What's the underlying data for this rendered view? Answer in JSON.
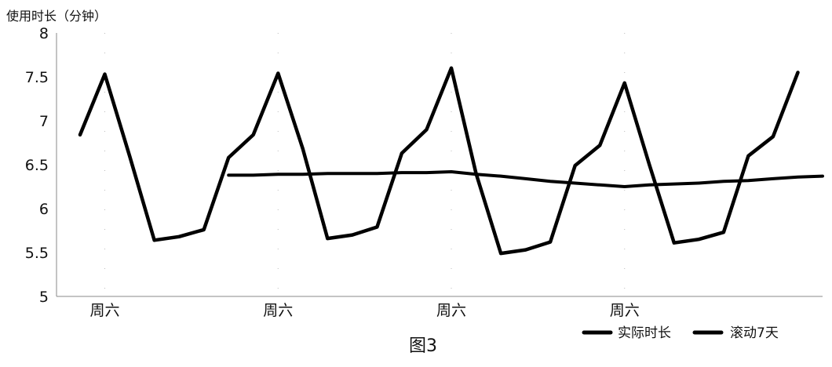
{
  "chart_data": {
    "type": "line",
    "title": "",
    "caption": "图3",
    "ylabel": "使用时长（分钟）",
    "xlabel": "",
    "ylim": [
      5,
      8
    ],
    "yticks": [
      "5",
      "5.5",
      "6",
      "6.5",
      "7",
      "7.5",
      "8"
    ],
    "x": [
      1,
      2,
      3,
      4,
      5,
      6,
      7,
      8,
      9,
      10,
      11,
      12,
      13,
      14,
      15,
      16,
      17,
      18,
      19,
      20,
      21,
      22,
      23,
      24,
      25,
      26,
      27,
      28,
      29,
      30,
      31
    ],
    "xtick_labels": [
      {
        "x": 2,
        "label": "周六"
      },
      {
        "x": 9,
        "label": "周六"
      },
      {
        "x": 16,
        "label": "周六"
      },
      {
        "x": 23,
        "label": "周六"
      }
    ],
    "grid": true,
    "legend_position": "bottom-right",
    "series": [
      {
        "name": "实际时长",
        "color": "#000000",
        "values": [
          6.84,
          7.53,
          6.6,
          5.64,
          5.68,
          5.76,
          6.58,
          6.84,
          7.54,
          6.68,
          5.66,
          5.7,
          5.79,
          6.63,
          6.9,
          7.6,
          6.4,
          5.49,
          5.53,
          5.62,
          6.49,
          6.72,
          7.43,
          6.5,
          5.61,
          5.65,
          5.73,
          6.6,
          6.82,
          7.55,
          null
        ]
      },
      {
        "name": "滚动7天",
        "color": "#000000",
        "values": [
          null,
          null,
          null,
          null,
          null,
          null,
          6.38,
          6.38,
          6.39,
          6.39,
          6.4,
          6.4,
          6.4,
          6.41,
          6.41,
          6.42,
          6.39,
          6.37,
          6.34,
          6.31,
          6.29,
          6.27,
          6.25,
          6.27,
          6.28,
          6.29,
          6.31,
          6.32,
          6.34,
          6.36,
          6.37
        ]
      }
    ]
  }
}
